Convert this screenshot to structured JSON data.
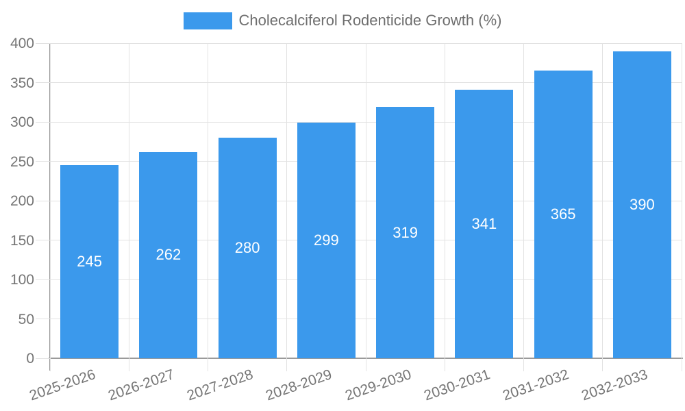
{
  "legend": {
    "label": "Cholecalciferol Rodenticide Growth (%)"
  },
  "colors": {
    "bar": "#3B99EC",
    "axis": "#9A9A9A",
    "grid": "#E2E2E2",
    "axis_label_text": "#757575",
    "legend_text": "#6E6E6E",
    "bar_label_text": "#FFFFFF"
  },
  "chart_data": {
    "type": "bar",
    "title": "Cholecalciferol Rodenticide Growth (%)",
    "categories": [
      "2025-2026",
      "2026-2027",
      "2027-2028",
      "2028-2029",
      "2029-2030",
      "2030-2031",
      "2031-2032",
      "2032-2033"
    ],
    "values": [
      245,
      262,
      280,
      299,
      319,
      341,
      365,
      390
    ],
    "xlabel": "",
    "ylabel": "",
    "ylim": [
      0,
      400
    ],
    "ytick_step": 50,
    "grid": true,
    "legend_position": "top-center",
    "bar_labels": "inside-center",
    "xtick_rotation_deg": -19
  }
}
